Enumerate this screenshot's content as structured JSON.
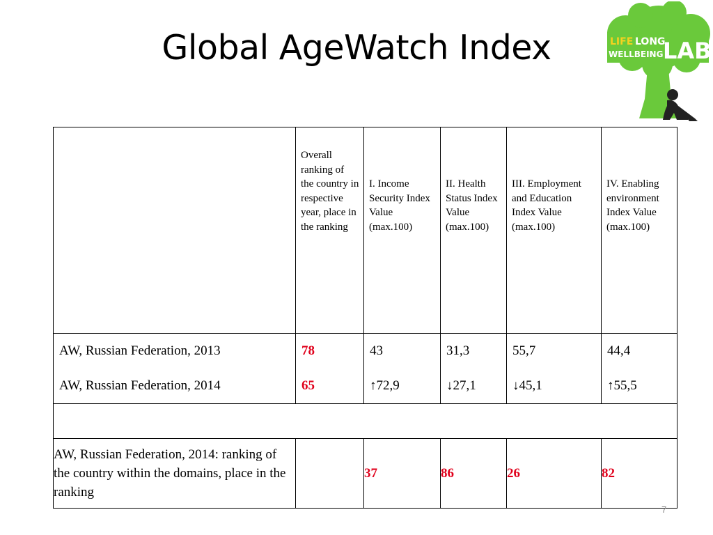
{
  "slide": {
    "title": "Global AgeWatch Index",
    "page_number": "7"
  },
  "logo": {
    "line1": "LIFE",
    "line1b": "LONG",
    "line2": "WELLBEING",
    "lab": "LAB",
    "tree_color": "#6ac93b",
    "icon": "tree-person-logo"
  },
  "table": {
    "headers": [
      "",
      "Overall ranking of the country in respective year, place in the ranking",
      "I. Income Security Index Value (max.100)",
      "II. Health Status Index Value (max.100)",
      "III. Employment and Education Index Value (max.100)",
      "IV. Enabling environment Index Value (max.100)"
    ],
    "rows": [
      {
        "label": "AW, Russian Federation, 2013",
        "overall": "78",
        "income": "43",
        "health": "31,3",
        "employment": "55,7",
        "environment": "44,4"
      },
      {
        "label": "AW, Russian Federation, 2014",
        "overall": "65",
        "income": "↑72,9",
        "health": "↓27,1",
        "employment": "↓45,1",
        "environment": "↑55,5"
      }
    ],
    "domain_row": {
      "label": "AW,  Russian Federation, 2014: ranking of the country within the domains, place in the ranking",
      "income": "37",
      "health": "86",
      "employment": "26",
      "environment": "82"
    },
    "highlight_color": "#e0001b"
  }
}
